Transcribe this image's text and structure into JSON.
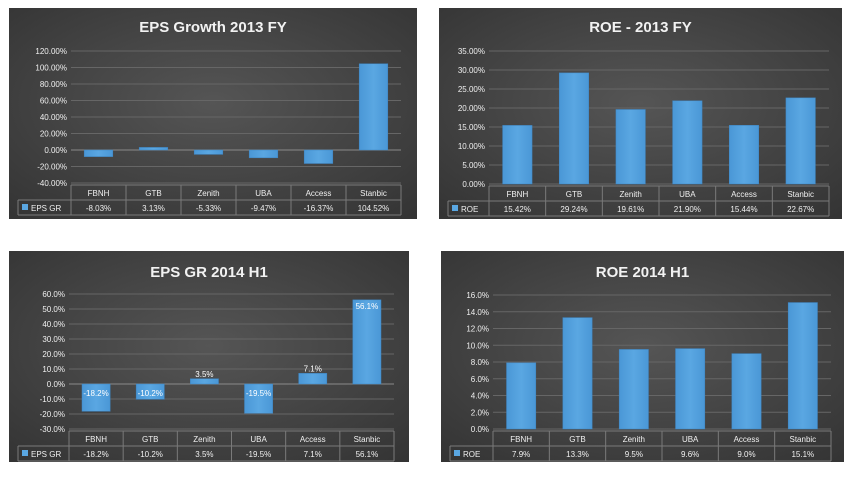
{
  "chart_data": [
    {
      "type": "bar",
      "title": "EPS Growth 2013 FY",
      "categories": [
        "FBNH",
        "GTB",
        "Zenith",
        "UBA",
        "Access",
        "Stanbic"
      ],
      "series": [
        {
          "name": "EPS GR",
          "values": [
            -8.03,
            3.13,
            -5.33,
            -9.47,
            -16.37,
            104.52
          ]
        }
      ],
      "value_labels": [
        "-8.03%",
        "3.13%",
        "-5.33%",
        "-9.47%",
        "-16.37%",
        "104.52%"
      ],
      "ylim": [
        -40,
        120
      ],
      "yticks": [
        120,
        100,
        80,
        60,
        40,
        20,
        0,
        -20,
        -40
      ],
      "ytick_labels": [
        "120.00%",
        "100.00%",
        "80.00%",
        "60.00%",
        "40.00%",
        "20.00%",
        "0.00%",
        "-20.00%",
        "-40.00%"
      ],
      "data_labels_on_bars": false,
      "legend": "data-table",
      "colors": {
        "background": "#454545",
        "bar": "#5aa7e2",
        "grid": "#666666",
        "text": "#f0f0f0"
      }
    },
    {
      "type": "bar",
      "title": "ROE - 2013 FY",
      "categories": [
        "FBNH",
        "GTB",
        "Zenith",
        "UBA",
        "Access",
        "Stanbic"
      ],
      "series": [
        {
          "name": "ROE",
          "values": [
            15.42,
            29.24,
            19.61,
            21.9,
            15.44,
            22.67
          ]
        }
      ],
      "value_labels": [
        "15.42%",
        "29.24%",
        "19.61%",
        "21.90%",
        "15.44%",
        "22.67%"
      ],
      "ylim": [
        0,
        35
      ],
      "yticks": [
        35,
        30,
        25,
        20,
        15,
        10,
        5,
        0
      ],
      "ytick_labels": [
        "35.00%",
        "30.00%",
        "25.00%",
        "20.00%",
        "15.00%",
        "10.00%",
        "5.00%",
        "0.00%"
      ],
      "data_labels_on_bars": false,
      "legend": "data-table",
      "colors": {
        "background": "#454545",
        "bar": "#5aa7e2",
        "grid": "#666666",
        "text": "#f0f0f0"
      }
    },
    {
      "type": "bar",
      "title": "EPS GR 2014 H1",
      "categories": [
        "FBNH",
        "GTB",
        "Zenith",
        "UBA",
        "Access",
        "Stanbic"
      ],
      "series": [
        {
          "name": "EPS GR",
          "values": [
            -18.2,
            -10.2,
            3.5,
            -19.5,
            7.1,
            56.1
          ]
        }
      ],
      "value_labels": [
        "-18.2%",
        "-10.2%",
        "3.5%",
        "-19.5%",
        "7.1%",
        "56.1%"
      ],
      "ylim": [
        -30,
        60
      ],
      "yticks": [
        60,
        50,
        40,
        30,
        20,
        10,
        0,
        -10,
        -20,
        -30
      ],
      "ytick_labels": [
        "60.0%",
        "50.0%",
        "40.0%",
        "30.0%",
        "20.0%",
        "10.0%",
        "0.0%",
        "-10.0%",
        "-20.0%",
        "-30.0%"
      ],
      "data_labels_on_bars": true,
      "legend": "data-table",
      "colors": {
        "background": "#454545",
        "bar": "#5aa7e2",
        "grid": "#666666",
        "text": "#f0f0f0"
      }
    },
    {
      "type": "bar",
      "title": "ROE 2014 H1",
      "categories": [
        "FBNH",
        "GTB",
        "Zenith",
        "UBA",
        "Access",
        "Stanbic"
      ],
      "series": [
        {
          "name": "ROE",
          "values": [
            7.9,
            13.3,
            9.5,
            9.6,
            9.0,
            15.1
          ]
        }
      ],
      "value_labels": [
        "7.9%",
        "13.3%",
        "9.5%",
        "9.6%",
        "9.0%",
        "15.1%"
      ],
      "ylim": [
        0,
        16
      ],
      "yticks": [
        16,
        14,
        12,
        10,
        8,
        6,
        4,
        2,
        0
      ],
      "ytick_labels": [
        "16.0%",
        "14.0%",
        "12.0%",
        "10.0%",
        "8.0%",
        "6.0%",
        "4.0%",
        "2.0%",
        "0.0%"
      ],
      "data_labels_on_bars": false,
      "legend": "data-table",
      "colors": {
        "background": "#454545",
        "bar": "#5aa7e2",
        "grid": "#666666",
        "text": "#f0f0f0"
      }
    }
  ]
}
